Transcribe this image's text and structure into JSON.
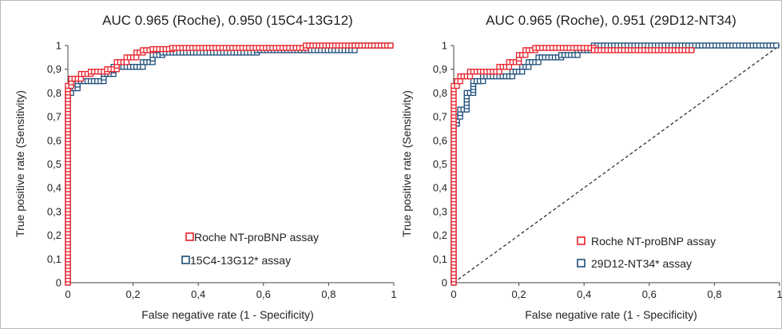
{
  "chart_data": [
    {
      "type": "line",
      "title": "AUC 0.965 (Roche), 0.950 (15C4-13G12)",
      "xlabel": "False negative rate (1 - Specificity)",
      "ylabel": "True positive rate (Sensitivity)",
      "xlim": [
        0,
        1
      ],
      "ylim": [
        0,
        1
      ],
      "x_ticks": [
        "0",
        "0,2",
        "0,4",
        "0,6",
        "0,8",
        "1"
      ],
      "y_ticks": [
        "0",
        "0,1",
        "0,2",
        "0,3",
        "0,4",
        "0,5",
        "0,6",
        "0,7",
        "0,8",
        "0,9",
        "1"
      ],
      "grid": false,
      "legend_position": "bottom-right",
      "diagonal_reference": false,
      "series": [
        {
          "name": "Roche NT-proBNP assay",
          "color": "#e8202a",
          "marker": "square-open",
          "x": [
            0,
            0,
            0.01,
            0.01,
            0.04,
            0.04,
            0.07,
            0.07,
            0.12,
            0.12,
            0.15,
            0.15,
            0.18,
            0.18,
            0.21,
            0.21,
            0.23,
            0.23,
            0.26,
            0.26,
            0.32,
            0.32,
            0.73,
            0.73,
            0.88,
            0.88,
            1.0
          ],
          "y": [
            0,
            0.83,
            0.83,
            0.86,
            0.86,
            0.88,
            0.88,
            0.89,
            0.89,
            0.9,
            0.9,
            0.93,
            0.93,
            0.95,
            0.95,
            0.97,
            0.97,
            0.98,
            0.98,
            0.985,
            0.985,
            0.99,
            0.99,
            1.0,
            1.0,
            1.0,
            1.0
          ]
        },
        {
          "name": "15C4-13G12* assay",
          "color": "#1f4e79",
          "marker": "square-open",
          "x": [
            0,
            0,
            0.01,
            0.01,
            0.03,
            0.03,
            0.11,
            0.11,
            0.14,
            0.14,
            0.23,
            0.23,
            0.26,
            0.26,
            0.29,
            0.29,
            0.58,
            0.58,
            0.88,
            0.88,
            1.0
          ],
          "y": [
            0,
            0.8,
            0.8,
            0.82,
            0.82,
            0.85,
            0.85,
            0.88,
            0.88,
            0.91,
            0.91,
            0.93,
            0.93,
            0.96,
            0.96,
            0.97,
            0.97,
            0.98,
            0.98,
            1.0,
            1.0
          ]
        }
      ]
    },
    {
      "type": "line",
      "title": "AUC 0.965 (Roche), 0.951 (29D12-NT34)",
      "xlabel": "False negative rate (1 - Specificity)",
      "ylabel": "True positive rate (Sensitivity)",
      "xlim": [
        0,
        1
      ],
      "ylim": [
        0,
        1
      ],
      "x_ticks": [
        "0",
        "0,2",
        "0,4",
        "0,6",
        "0,8",
        "1"
      ],
      "y_ticks": [
        "0",
        "0,1",
        "0,2",
        "0,3",
        "0,4",
        "0,5",
        "0,6",
        "0,7",
        "0,8",
        "0,9",
        "1"
      ],
      "grid": false,
      "legend_position": "bottom-right",
      "diagonal_reference": true,
      "series": [
        {
          "name": "Roche NT-proBNP assay",
          "color": "#e8202a",
          "marker": "square-open",
          "x": [
            0,
            0,
            0.01,
            0.01,
            0.02,
            0.02,
            0.05,
            0.05,
            0.14,
            0.14,
            0.17,
            0.17,
            0.2,
            0.2,
            0.22,
            0.22,
            0.25,
            0.25,
            0.43,
            0.43,
            0.74
          ],
          "y": [
            0,
            0.83,
            0.83,
            0.85,
            0.85,
            0.87,
            0.87,
            0.89,
            0.89,
            0.91,
            0.91,
            0.93,
            0.93,
            0.96,
            0.96,
            0.98,
            0.98,
            0.99,
            0.99,
            0.98,
            0.98
          ]
        },
        {
          "name": "29D12-NT34* assay",
          "color": "#1f4e79",
          "marker": "square-open",
          "x": [
            0,
            0,
            0.01,
            0.01,
            0.02,
            0.02,
            0.04,
            0.04,
            0.06,
            0.06,
            0.09,
            0.09,
            0.18,
            0.18,
            0.21,
            0.21,
            0.23,
            0.23,
            0.26,
            0.26,
            0.33,
            0.33,
            0.38,
            0.38,
            0.43,
            0.43,
            1.0
          ],
          "y": [
            0,
            0.67,
            0.67,
            0.7,
            0.7,
            0.73,
            0.73,
            0.8,
            0.8,
            0.85,
            0.85,
            0.87,
            0.87,
            0.89,
            0.89,
            0.91,
            0.91,
            0.93,
            0.93,
            0.95,
            0.95,
            0.96,
            0.96,
            0.98,
            0.98,
            1.0,
            1.0
          ]
        }
      ]
    }
  ]
}
